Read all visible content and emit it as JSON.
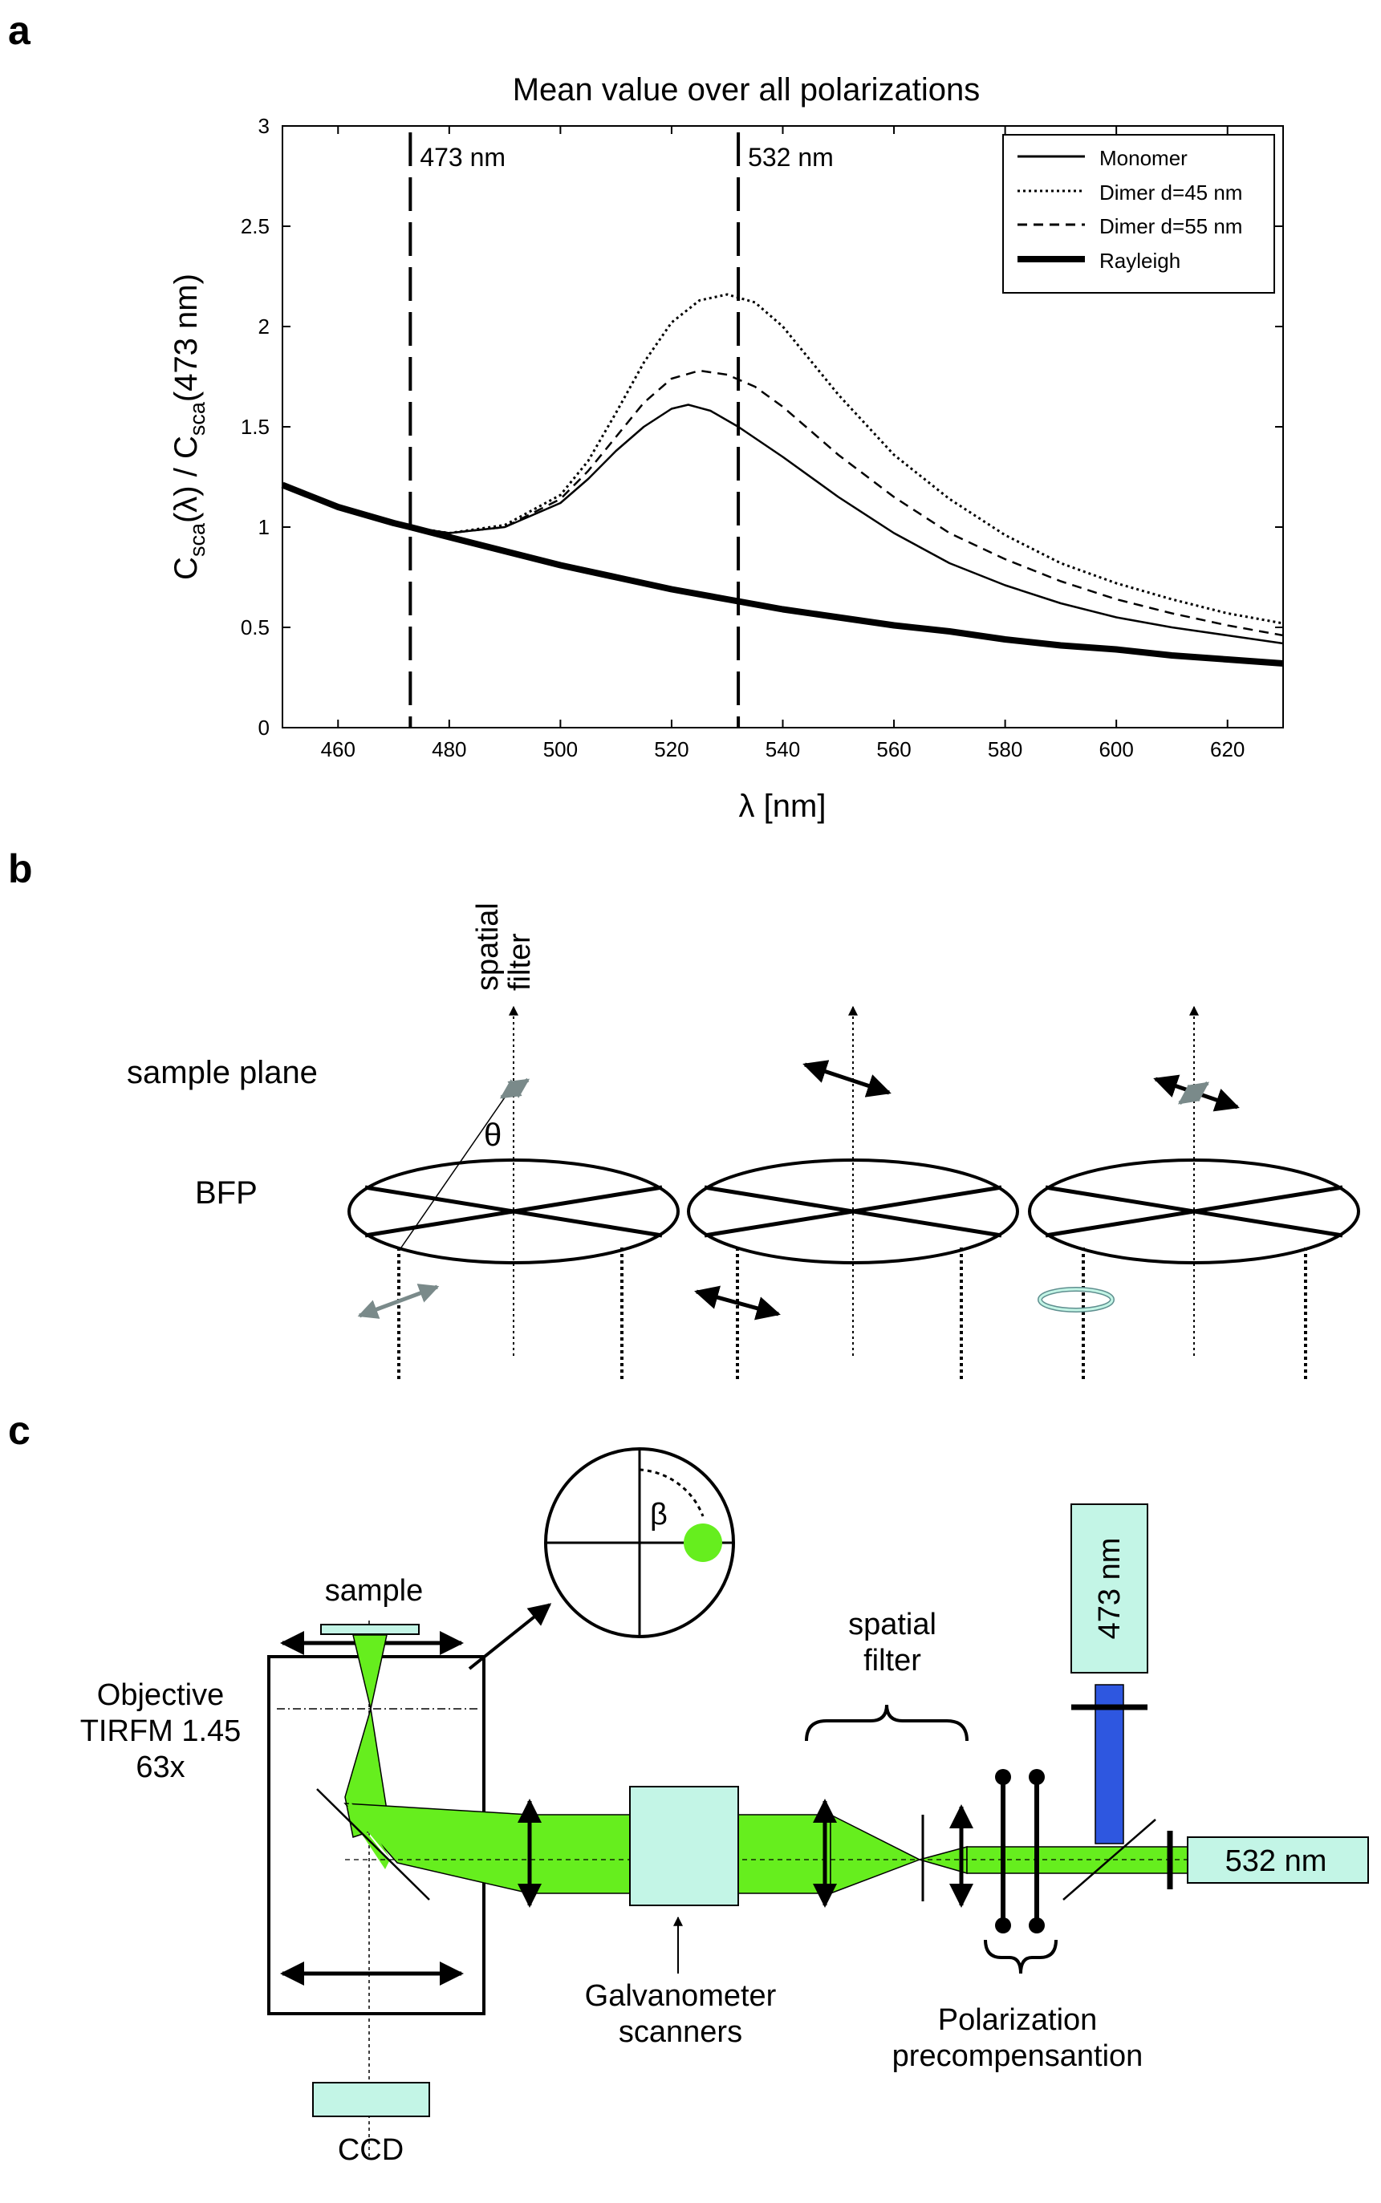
{
  "panels": {
    "a": "a",
    "b": "b",
    "c": "c"
  },
  "panel_a": {
    "chart_data": {
      "type": "line",
      "title": "Mean value over all polarizations",
      "xlabel": "λ [nm]",
      "ylabel_parts": {
        "c1": "C",
        "sub1": "sca",
        "mid": "(λ) / C",
        "sub2": "sca",
        "end": "(473 nm)"
      },
      "xlim": [
        450,
        630
      ],
      "ylim": [
        0,
        3
      ],
      "xticks": [
        460,
        480,
        500,
        520,
        540,
        560,
        580,
        600,
        620
      ],
      "yticks": [
        "0",
        "0.5",
        "1",
        "1.5",
        "2",
        "2.5",
        "3"
      ],
      "markers": [
        {
          "x": 473,
          "label": "473 nm"
        },
        {
          "x": 532,
          "label": "532 nm"
        }
      ],
      "legend_position": "top-right",
      "series": [
        {
          "name": "Monomer",
          "style": "solid-thin",
          "x": [
            473,
            480,
            490,
            500,
            505,
            510,
            515,
            520,
            523,
            527,
            532,
            540,
            550,
            560,
            570,
            580,
            590,
            600,
            610,
            620,
            630
          ],
          "y": [
            1.0,
            0.97,
            1.0,
            1.12,
            1.24,
            1.38,
            1.5,
            1.59,
            1.61,
            1.58,
            1.5,
            1.35,
            1.15,
            0.97,
            0.82,
            0.71,
            0.62,
            0.55,
            0.5,
            0.46,
            0.42
          ]
        },
        {
          "name": "Dimer d=45 nm",
          "style": "dotted",
          "x": [
            473,
            480,
            490,
            500,
            505,
            510,
            515,
            520,
            525,
            530,
            535,
            540,
            550,
            560,
            570,
            580,
            590,
            600,
            610,
            620,
            630
          ],
          "y": [
            1.0,
            0.97,
            1.01,
            1.16,
            1.33,
            1.57,
            1.82,
            2.02,
            2.13,
            2.16,
            2.12,
            2.0,
            1.66,
            1.36,
            1.14,
            0.96,
            0.82,
            0.72,
            0.64,
            0.57,
            0.52
          ]
        },
        {
          "name": "Dimer d=55 nm",
          "style": "dashed",
          "x": [
            473,
            480,
            490,
            500,
            505,
            510,
            515,
            520,
            525,
            530,
            535,
            540,
            550,
            560,
            570,
            580,
            590,
            600,
            610,
            620,
            630
          ],
          "y": [
            1.0,
            0.97,
            1.0,
            1.14,
            1.28,
            1.45,
            1.62,
            1.74,
            1.78,
            1.76,
            1.7,
            1.6,
            1.36,
            1.15,
            0.97,
            0.84,
            0.73,
            0.64,
            0.57,
            0.51,
            0.46
          ]
        },
        {
          "name": "Rayleigh",
          "style": "solid-thick",
          "x": [
            450,
            460,
            470,
            473,
            480,
            490,
            500,
            510,
            520,
            530,
            540,
            550,
            560,
            570,
            580,
            590,
            600,
            610,
            620,
            630
          ],
          "y": [
            1.21,
            1.1,
            1.02,
            1.0,
            0.95,
            0.88,
            0.81,
            0.75,
            0.69,
            0.64,
            0.59,
            0.55,
            0.51,
            0.48,
            0.44,
            0.41,
            0.39,
            0.36,
            0.34,
            0.32
          ]
        }
      ]
    }
  },
  "panel_b": {
    "spatial_filter": "spatial\nfilter",
    "sample_plane": "sample plane",
    "theta": "θ",
    "bfp": "BFP"
  },
  "panel_c": {
    "beta": "β",
    "sample": "sample",
    "objective": [
      "Objective",
      "TIRFM 1.45",
      "63x"
    ],
    "spatial_filter": [
      "spatial",
      "filter"
    ],
    "laser_473": "473 nm",
    "laser_532": "532 nm",
    "galvo": [
      "Galvanometer",
      "scanners"
    ],
    "polarization": [
      "Polarization",
      "precompensantion"
    ],
    "ccd": "CCD",
    "colors": {
      "beam": "#66ee1e",
      "box": "#c3f5e6",
      "laser473": "#2e57e0"
    }
  }
}
